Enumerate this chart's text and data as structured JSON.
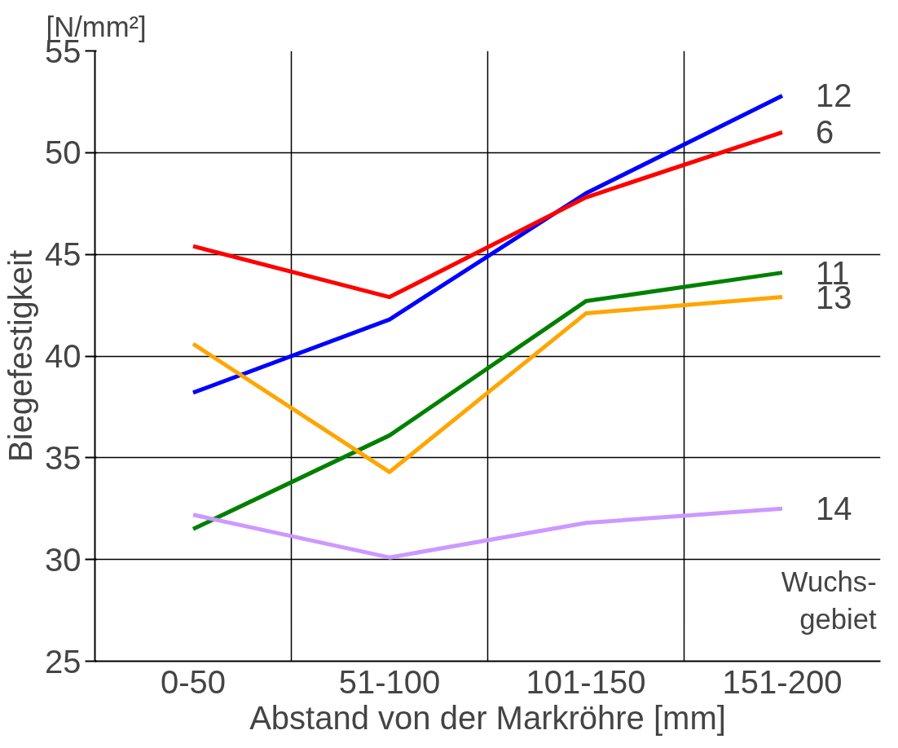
{
  "chart_data": {
    "type": "line",
    "categories": [
      "0-50",
      "51-100",
      "101-150",
      "151-200"
    ],
    "xlabel": "Abstand von der Markröhre [mm]",
    "ylabel": "Biegefestigkeit",
    "annotations": [
      "[N/mm²]",
      "Wuchs-\ngebiet"
    ],
    "series": [
      {
        "name": "12",
        "color": "#0000ff",
        "values": [
          38.2,
          41.8,
          48.0,
          52.8
        ]
      },
      {
        "name": "6",
        "color": "#ff0000",
        "values": [
          45.4,
          42.9,
          47.8,
          51.0
        ]
      },
      {
        "name": "11",
        "color": "#008000",
        "values": [
          31.5,
          36.1,
          42.7,
          44.1
        ]
      },
      {
        "name": "13",
        "color": "#ffa500",
        "values": [
          40.6,
          34.3,
          42.1,
          42.9
        ]
      },
      {
        "name": "14",
        "color": "#cc99ff",
        "values": [
          32.2,
          30.1,
          31.8,
          32.5
        ]
      }
    ],
    "ylim": [
      25,
      55
    ],
    "yticks": [
      25,
      30,
      35,
      40,
      45,
      50,
      55
    ],
    "grid": true,
    "marker": "none",
    "line_style": "solid"
  }
}
